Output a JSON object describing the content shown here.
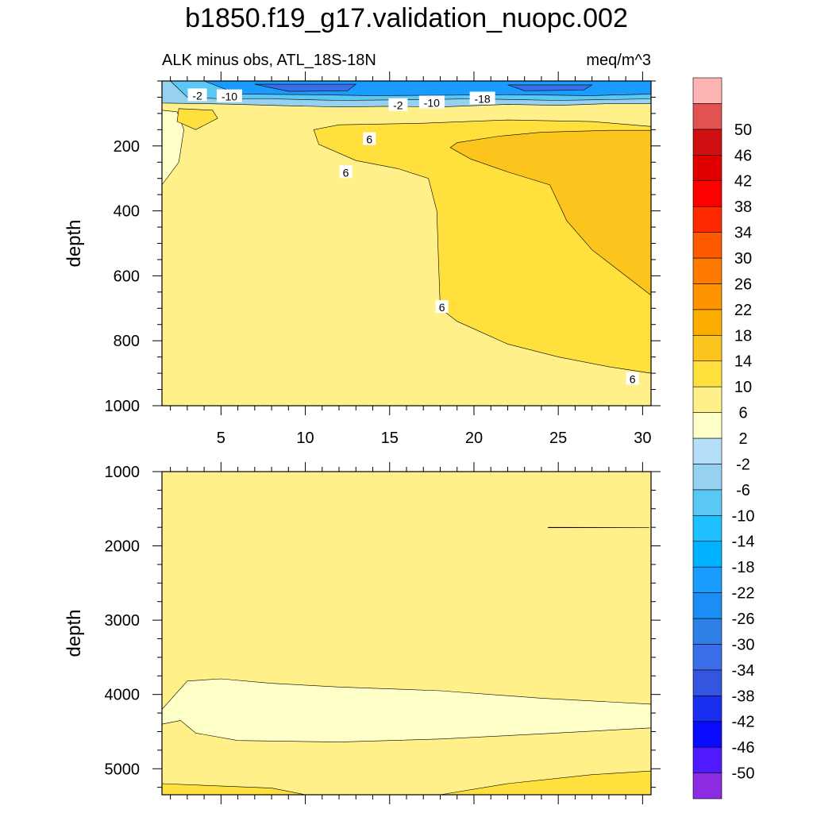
{
  "chart_data": {
    "type": "contour",
    "title": "b1850.f19_g17.validation_nuopc.002",
    "subtitle_left": "ALK minus obs, ATL_18S-18N",
    "subtitle_right": "meq/m^3",
    "xlim": [
      1.5,
      30.5
    ],
    "x_ticks": [
      5,
      10,
      15,
      20,
      25,
      30
    ],
    "colorbar": {
      "levels": [
        -50,
        -46,
        -42,
        -38,
        -34,
        -30,
        -26,
        -22,
        -18,
        -14,
        -10,
        -6,
        -2,
        2,
        6,
        10,
        14,
        18,
        22,
        26,
        30,
        34,
        38,
        42,
        46,
        50
      ],
      "colors": [
        "#8b2be2",
        "#4f1aff",
        "#0a0aff",
        "#1a2ef0",
        "#3355e0",
        "#3a6ee8",
        "#2e7fe8",
        "#1a8ef5",
        "#1a9cff",
        "#00b2ff",
        "#1ec0ff",
        "#5ac8f5",
        "#96d2f0",
        "#b4defa",
        "#ffffc8",
        "#fff089",
        "#ffe03c",
        "#fcc51e",
        "#fcae00",
        "#ff9400",
        "#ff7a00",
        "#ff5a00",
        "#ff2a00",
        "#ff0000",
        "#e00000",
        "#d01010",
        "#e35252",
        "#ffb4b4"
      ]
    },
    "panels": [
      {
        "name": "upper",
        "ylabel": "depth",
        "ylim": [
          0,
          1000
        ],
        "y_ticks": [
          200,
          400,
          600,
          800,
          1000
        ],
        "regions": [
          {
            "level": "2 to 6",
            "color": "#fff089",
            "shape": "background"
          },
          {
            "level": "6 to 10",
            "color": "#ffe03c",
            "shape": "deep wedge 18-30"
          },
          {
            "level": "10 to 14",
            "color": "#fcc51e",
            "shape": "core 21-30, 200-700"
          },
          {
            "level": "-2 to 2",
            "color": "#ffffc8",
            "shape": "west edge"
          },
          {
            "level": "negative",
            "color": "#96d2f0",
            "shape": "surface band 0-60"
          }
        ],
        "contour_labels": [
          {
            "text": "-2",
            "x": 3.6,
            "y": 45
          },
          {
            "text": "-10",
            "x": 5.5,
            "y": 48
          },
          {
            "text": "-2",
            "x": 15.5,
            "y": 75
          },
          {
            "text": "-10",
            "x": 17.5,
            "y": 67
          },
          {
            "text": "-18",
            "x": 20.5,
            "y": 55
          },
          {
            "text": "6",
            "x": 13.8,
            "y": 180
          },
          {
            "text": "6",
            "x": 12.4,
            "y": 282
          },
          {
            "text": "6",
            "x": 18.1,
            "y": 697
          },
          {
            "text": "6",
            "x": 29.4,
            "y": 918
          }
        ]
      },
      {
        "name": "lower",
        "ylabel": "depth",
        "ylim": [
          1000,
          5350
        ],
        "y_ticks": [
          1000,
          2000,
          3000,
          4000,
          5000
        ],
        "regions": [
          {
            "level": "2 to 6",
            "color": "#fff089",
            "shape": "background"
          },
          {
            "level": "-2 to 2",
            "color": "#ffffc8",
            "shape": "band 3800-4650"
          },
          {
            "level": "6 to 10",
            "color": "#ffe03c",
            "shape": "bottom corners"
          }
        ]
      }
    ]
  }
}
